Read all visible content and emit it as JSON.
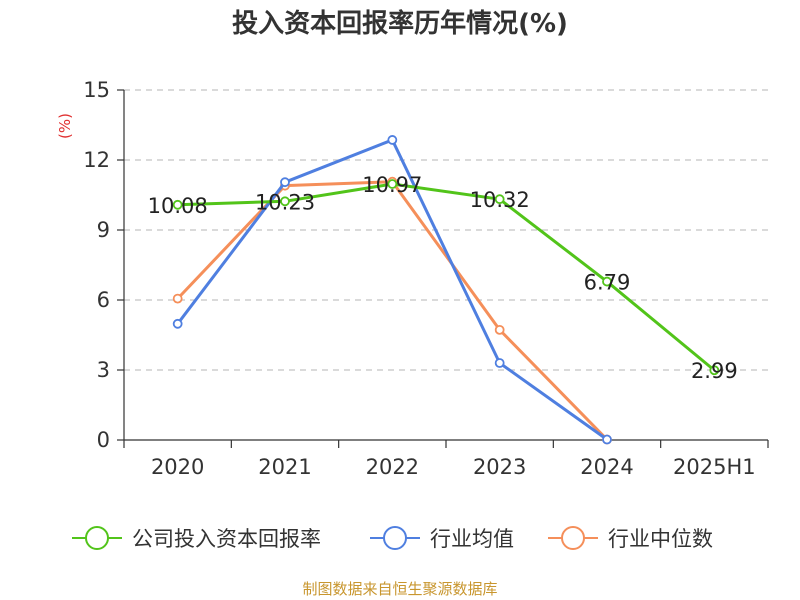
{
  "chart_data": {
    "type": "line",
    "title": "投入资本回报率历年情况(%)",
    "y_unit": "(%)",
    "categories": [
      "2020",
      "2021",
      "2022",
      "2023",
      "2024",
      "2025H1"
    ],
    "ylim": [
      0,
      15
    ],
    "yticks": [
      0,
      3,
      6,
      9,
      12,
      15
    ],
    "grid": true,
    "legend_position": "bottom",
    "series": [
      {
        "name": "公司投入资本回报率",
        "color": "#52c41a",
        "values": [
          10.08,
          10.23,
          10.97,
          10.32,
          6.79,
          2.99
        ],
        "labels": [
          "10.08",
          "10.23",
          "10.97",
          "10.32",
          "6.79",
          "2.99"
        ]
      },
      {
        "name": "行业均值",
        "color": "#4f7fe0",
        "values": [
          4.98,
          11.05,
          12.86,
          3.3,
          0.02,
          null
        ]
      },
      {
        "name": "行业中位数",
        "color": "#f58f5a",
        "values": [
          6.06,
          10.9,
          11.07,
          4.72,
          0.02,
          null
        ]
      }
    ]
  },
  "source": "制图数据来自恒生聚源数据库"
}
